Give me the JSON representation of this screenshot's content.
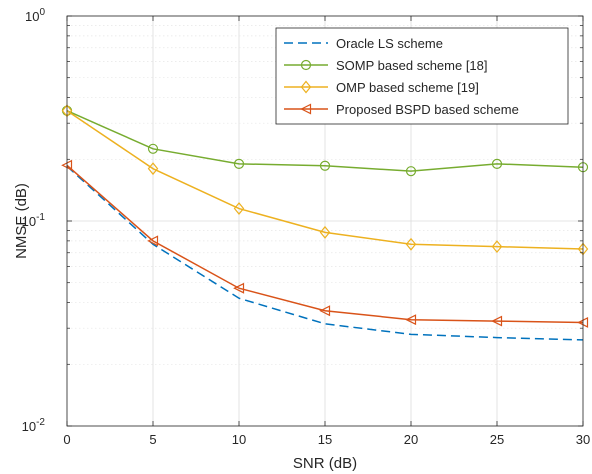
{
  "chart_data": {
    "type": "line",
    "xlabel": "SNR (dB)",
    "ylabel": "NMSE (dB)",
    "xlim": [
      0,
      30
    ],
    "ylim": [
      0.01,
      1
    ],
    "yscale": "log",
    "grid": true,
    "legend_position": "top-right",
    "x_ticks": [
      "0",
      "5",
      "10",
      "15",
      "20",
      "25",
      "30"
    ],
    "y_ticks": [
      {
        "base": "10",
        "exp": "-2"
      },
      {
        "base": "10",
        "exp": "-1"
      },
      {
        "base": "10",
        "exp": "0"
      }
    ],
    "x": [
      0,
      5,
      10,
      15,
      20,
      25,
      30
    ],
    "series": [
      {
        "name": "Oracle LS scheme",
        "values": [
          0.185,
          0.077,
          0.042,
          0.0315,
          0.028,
          0.027,
          0.0263
        ],
        "color": "#0072BD",
        "dash": "dashed",
        "marker": "none"
      },
      {
        "name": "SOMP based scheme [18]",
        "values": [
          0.345,
          0.225,
          0.19,
          0.186,
          0.175,
          0.19,
          0.183
        ],
        "color": "#77AC30",
        "dash": "solid",
        "marker": "circle"
      },
      {
        "name": "OMP based scheme [19]",
        "values": [
          0.345,
          0.18,
          0.115,
          0.088,
          0.077,
          0.075,
          0.073
        ],
        "color": "#EDB120",
        "dash": "solid",
        "marker": "diamond"
      },
      {
        "name": "Proposed BSPD based scheme",
        "values": [
          0.187,
          0.08,
          0.047,
          0.0365,
          0.033,
          0.0325,
          0.032
        ],
        "color": "#D95319",
        "dash": "solid",
        "marker": "triangle-left"
      }
    ]
  }
}
